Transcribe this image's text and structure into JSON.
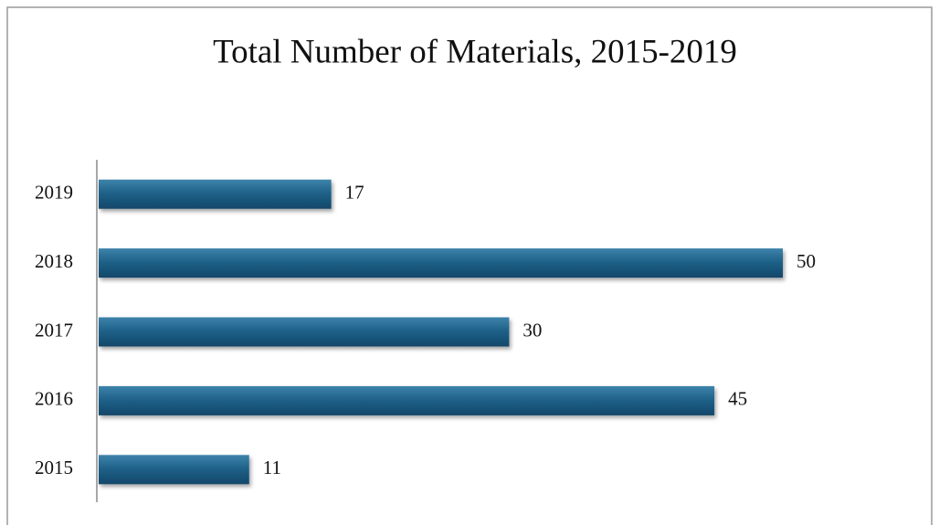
{
  "chart_data": {
    "type": "bar",
    "orientation": "horizontal",
    "title": "Total Number of Materials, 2015-2019",
    "categories": [
      "2019",
      "2018",
      "2017",
      "2016",
      "2015"
    ],
    "values": [
      17,
      50,
      30,
      45,
      11
    ],
    "color": "#1d5f86"
  }
}
